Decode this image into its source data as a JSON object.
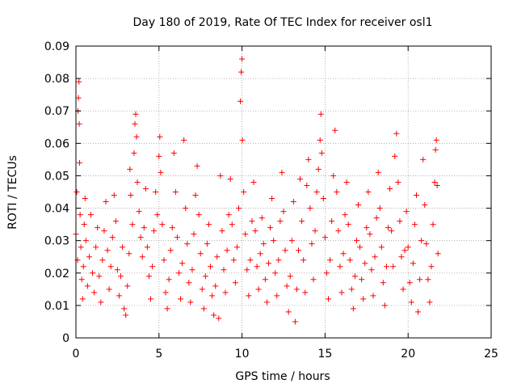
{
  "chart_data": {
    "type": "scatter",
    "title": "Day 180 of 2019, Rate Of TEC Index for receiver osl1",
    "xlabel": "GPS time / hours",
    "ylabel": "ROTI / TECUs",
    "xlim": [
      0,
      25
    ],
    "ylim": [
      0,
      0.09
    ],
    "xticks": [
      0,
      5,
      10,
      15,
      20,
      25
    ],
    "xtick_labels": [
      "0",
      "5",
      "10",
      "15",
      "20",
      "25"
    ],
    "yticks": [
      0,
      0.01,
      0.02,
      0.03,
      0.04,
      0.05,
      0.06,
      0.07,
      0.08,
      0.09
    ],
    "ytick_labels": [
      "0",
      "0.01",
      "0.02",
      "0.03",
      "0.04",
      "0.05",
      "0.06",
      "0.07",
      "0.08",
      "0.09"
    ],
    "grid": true,
    "marker": "plus",
    "marker_color": "#ff0000",
    "series": [
      {
        "points": [
          [
            0.0,
            0.032
          ],
          [
            0.05,
            0.045
          ],
          [
            0.1,
            0.024
          ],
          [
            0.12,
            0.07
          ],
          [
            0.15,
            0.074
          ],
          [
            0.18,
            0.079
          ],
          [
            0.2,
            0.066
          ],
          [
            0.22,
            0.054
          ],
          [
            0.25,
            0.038
          ],
          [
            0.3,
            0.028
          ],
          [
            0.35,
            0.018
          ],
          [
            0.4,
            0.012
          ],
          [
            0.45,
            0.022
          ],
          [
            0.5,
            0.035
          ],
          [
            0.55,
            0.043
          ],
          [
            0.6,
            0.03
          ],
          [
            0.7,
            0.016
          ],
          [
            0.8,
            0.025
          ],
          [
            0.9,
            0.038
          ],
          [
            1.0,
            0.02
          ],
          [
            1.1,
            0.014
          ],
          [
            1.2,
            0.028
          ],
          [
            1.3,
            0.034
          ],
          [
            1.4,
            0.019
          ],
          [
            1.5,
            0.011
          ],
          [
            1.6,
            0.024
          ],
          [
            1.7,
            0.033
          ],
          [
            1.8,
            0.042
          ],
          [
            1.9,
            0.027
          ],
          [
            2.0,
            0.015
          ],
          [
            2.1,
            0.022
          ],
          [
            2.2,
            0.031
          ],
          [
            2.3,
            0.044
          ],
          [
            2.4,
            0.036
          ],
          [
            2.5,
            0.021
          ],
          [
            2.6,
            0.013
          ],
          [
            2.7,
            0.019
          ],
          [
            2.8,
            0.028
          ],
          [
            2.9,
            0.009
          ],
          [
            3.0,
            0.007
          ],
          [
            3.1,
            0.016
          ],
          [
            3.2,
            0.026
          ],
          [
            3.25,
            0.052
          ],
          [
            3.3,
            0.044
          ],
          [
            3.4,
            0.035
          ],
          [
            3.5,
            0.057
          ],
          [
            3.55,
            0.066
          ],
          [
            3.6,
            0.069
          ],
          [
            3.65,
            0.062
          ],
          [
            3.7,
            0.048
          ],
          [
            3.8,
            0.039
          ],
          [
            3.9,
            0.031
          ],
          [
            4.0,
            0.025
          ],
          [
            4.1,
            0.034
          ],
          [
            4.2,
            0.046
          ],
          [
            4.3,
            0.028
          ],
          [
            4.4,
            0.019
          ],
          [
            4.5,
            0.012
          ],
          [
            4.6,
            0.022
          ],
          [
            4.7,
            0.033
          ],
          [
            4.8,
            0.045
          ],
          [
            4.9,
            0.038
          ],
          [
            5.0,
            0.056
          ],
          [
            5.05,
            0.062
          ],
          [
            5.1,
            0.051
          ],
          [
            5.2,
            0.035
          ],
          [
            5.3,
            0.024
          ],
          [
            5.4,
            0.014
          ],
          [
            5.5,
            0.009
          ],
          [
            5.6,
            0.018
          ],
          [
            5.7,
            0.027
          ],
          [
            5.8,
            0.034
          ],
          [
            5.9,
            0.057
          ],
          [
            6.0,
            0.045
          ],
          [
            6.1,
            0.031
          ],
          [
            6.2,
            0.02
          ],
          [
            6.3,
            0.012
          ],
          [
            6.4,
            0.023
          ],
          [
            6.5,
            0.061
          ],
          [
            6.6,
            0.04
          ],
          [
            6.7,
            0.029
          ],
          [
            6.8,
            0.017
          ],
          [
            6.9,
            0.011
          ],
          [
            7.0,
            0.021
          ],
          [
            7.1,
            0.032
          ],
          [
            7.2,
            0.044
          ],
          [
            7.3,
            0.053
          ],
          [
            7.4,
            0.038
          ],
          [
            7.5,
            0.026
          ],
          [
            7.6,
            0.015
          ],
          [
            7.7,
            0.009
          ],
          [
            7.8,
            0.019
          ],
          [
            7.9,
            0.029
          ],
          [
            8.0,
            0.035
          ],
          [
            8.1,
            0.022
          ],
          [
            8.2,
            0.013
          ],
          [
            8.3,
            0.007
          ],
          [
            8.4,
            0.016
          ],
          [
            8.5,
            0.025
          ],
          [
            8.6,
            0.006
          ],
          [
            8.7,
            0.05
          ],
          [
            8.8,
            0.033
          ],
          [
            8.9,
            0.021
          ],
          [
            9.0,
            0.014
          ],
          [
            9.1,
            0.027
          ],
          [
            9.2,
            0.038
          ],
          [
            9.3,
            0.049
          ],
          [
            9.4,
            0.035
          ],
          [
            9.5,
            0.024
          ],
          [
            9.6,
            0.017
          ],
          [
            9.7,
            0.028
          ],
          [
            9.8,
            0.04
          ],
          [
            9.9,
            0.073
          ],
          [
            9.95,
            0.082
          ],
          [
            10.0,
            0.086
          ],
          [
            10.02,
            0.061
          ],
          [
            10.1,
            0.045
          ],
          [
            10.2,
            0.032
          ],
          [
            10.3,
            0.021
          ],
          [
            10.4,
            0.013
          ],
          [
            10.5,
            0.024
          ],
          [
            10.6,
            0.036
          ],
          [
            10.7,
            0.048
          ],
          [
            10.8,
            0.033
          ],
          [
            10.9,
            0.022
          ],
          [
            11.0,
            0.015
          ],
          [
            11.1,
            0.026
          ],
          [
            11.2,
            0.037
          ],
          [
            11.3,
            0.029
          ],
          [
            11.4,
            0.018
          ],
          [
            11.5,
            0.011
          ],
          [
            11.6,
            0.023
          ],
          [
            11.7,
            0.034
          ],
          [
            11.8,
            0.043
          ],
          [
            11.9,
            0.03
          ],
          [
            12.0,
            0.02
          ],
          [
            12.1,
            0.013
          ],
          [
            12.2,
            0.024
          ],
          [
            12.3,
            0.036
          ],
          [
            12.4,
            0.051
          ],
          [
            12.5,
            0.039
          ],
          [
            12.6,
            0.027
          ],
          [
            12.7,
            0.016
          ],
          [
            12.8,
            0.008
          ],
          [
            12.9,
            0.019
          ],
          [
            13.0,
            0.03
          ],
          [
            13.1,
            0.042
          ],
          [
            13.2,
            0.005
          ],
          [
            13.3,
            0.015
          ],
          [
            13.4,
            0.027
          ],
          [
            13.5,
            0.049
          ],
          [
            13.6,
            0.036
          ],
          [
            13.7,
            0.024
          ],
          [
            13.8,
            0.014
          ],
          [
            13.9,
            0.047
          ],
          [
            14.0,
            0.055
          ],
          [
            14.1,
            0.04
          ],
          [
            14.2,
            0.029
          ],
          [
            14.3,
            0.018
          ],
          [
            14.4,
            0.033
          ],
          [
            14.5,
            0.045
          ],
          [
            14.6,
            0.052
          ],
          [
            14.7,
            0.061
          ],
          [
            14.75,
            0.069
          ],
          [
            14.8,
            0.057
          ],
          [
            14.9,
            0.043
          ],
          [
            15.0,
            0.031
          ],
          [
            15.1,
            0.02
          ],
          [
            15.2,
            0.012
          ],
          [
            15.3,
            0.024
          ],
          [
            15.4,
            0.036
          ],
          [
            15.5,
            0.05
          ],
          [
            15.6,
            0.064
          ],
          [
            15.7,
            0.045
          ],
          [
            15.8,
            0.033
          ],
          [
            15.9,
            0.022
          ],
          [
            16.0,
            0.014
          ],
          [
            16.1,
            0.026
          ],
          [
            16.2,
            0.038
          ],
          [
            16.3,
            0.048
          ],
          [
            16.4,
            0.035
          ],
          [
            16.5,
            0.024
          ],
          [
            16.6,
            0.015
          ],
          [
            16.7,
            0.009
          ],
          [
            16.8,
            0.019
          ],
          [
            16.9,
            0.03
          ],
          [
            17.0,
            0.041
          ],
          [
            17.1,
            0.028
          ],
          [
            17.2,
            0.018
          ],
          [
            17.3,
            0.012
          ],
          [
            17.4,
            0.023
          ],
          [
            17.5,
            0.034
          ],
          [
            17.6,
            0.045
          ],
          [
            17.7,
            0.032
          ],
          [
            17.8,
            0.021
          ],
          [
            17.9,
            0.013
          ],
          [
            18.0,
            0.025
          ],
          [
            18.1,
            0.037
          ],
          [
            18.2,
            0.051
          ],
          [
            18.3,
            0.04
          ],
          [
            18.4,
            0.028
          ],
          [
            18.5,
            0.017
          ],
          [
            18.6,
            0.01
          ],
          [
            18.7,
            0.022
          ],
          [
            18.8,
            0.034
          ],
          [
            18.9,
            0.046
          ],
          [
            19.0,
            0.033
          ],
          [
            19.1,
            0.022
          ],
          [
            19.2,
            0.056
          ],
          [
            19.3,
            0.063
          ],
          [
            19.4,
            0.048
          ],
          [
            19.5,
            0.036
          ],
          [
            19.6,
            0.025
          ],
          [
            19.7,
            0.015
          ],
          [
            19.8,
            0.027
          ],
          [
            19.9,
            0.039
          ],
          [
            20.0,
            0.028
          ],
          [
            20.1,
            0.017
          ],
          [
            20.2,
            0.011
          ],
          [
            20.3,
            0.023
          ],
          [
            20.4,
            0.035
          ],
          [
            20.5,
            0.044
          ],
          [
            20.6,
            0.008
          ],
          [
            20.7,
            0.018
          ],
          [
            20.8,
            0.03
          ],
          [
            20.9,
            0.055
          ],
          [
            21.0,
            0.041
          ],
          [
            21.1,
            0.029
          ],
          [
            21.2,
            0.018
          ],
          [
            21.3,
            0.011
          ],
          [
            21.4,
            0.022
          ],
          [
            21.5,
            0.035
          ],
          [
            21.6,
            0.048
          ],
          [
            21.65,
            0.058
          ],
          [
            21.7,
            0.061
          ],
          [
            21.75,
            0.047
          ],
          [
            21.8,
            0.026
          ]
        ]
      }
    ]
  }
}
